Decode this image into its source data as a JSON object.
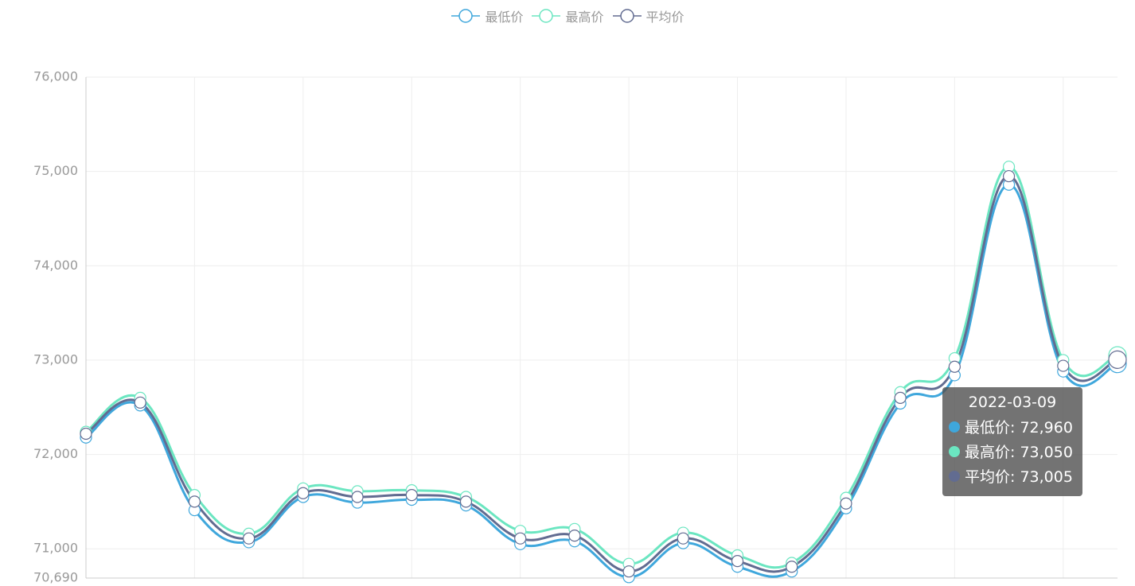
{
  "chart_data": {
    "type": "line",
    "smooth": true,
    "categories": [
      null,
      null,
      null,
      null,
      null,
      null,
      null,
      null,
      null,
      null,
      null,
      null,
      null,
      null,
      null,
      null,
      null,
      null,
      null,
      null
    ],
    "series": [
      {
        "name": "最低价",
        "color": "#3fa7dc",
        "values": [
          72180,
          72520,
          71410,
          71070,
          71550,
          71490,
          71520,
          71460,
          71050,
          71080,
          70700,
          71060,
          70810,
          70760,
          71430,
          72540,
          72840,
          74860,
          72880,
          72960
        ]
      },
      {
        "name": "最高价",
        "color": "#6be6c1",
        "values": [
          72240,
          72600,
          71570,
          71160,
          71640,
          71610,
          71620,
          71550,
          71190,
          71210,
          70840,
          71170,
          70930,
          70850,
          71540,
          72660,
          73020,
          75050,
          73000,
          73050
        ]
      },
      {
        "name": "平均价",
        "color": "#626c91",
        "values": [
          72220,
          72550,
          71500,
          71110,
          71590,
          71550,
          71570,
          71500,
          71110,
          71140,
          70760,
          71110,
          70870,
          70810,
          71480,
          72600,
          72930,
          74950,
          72940,
          73005
        ]
      }
    ],
    "ylim": [
      70690,
      76000
    ],
    "yticks": [
      {
        "value": 70690,
        "label": "70,690"
      },
      {
        "value": 71000,
        "label": "71,000"
      },
      {
        "value": 72000,
        "label": "72,000"
      },
      {
        "value": 73000,
        "label": "73,000"
      },
      {
        "value": 74000,
        "label": "74,000"
      },
      {
        "value": 75000,
        "label": "75,000"
      },
      {
        "value": 76000,
        "label": "76,000"
      }
    ],
    "grid": true,
    "legend": "top",
    "tooltip": {
      "title": "2022-03-09",
      "items": [
        "最低价: 72,960",
        "最高价: 73,050",
        "平均价: 73,005"
      ]
    }
  }
}
